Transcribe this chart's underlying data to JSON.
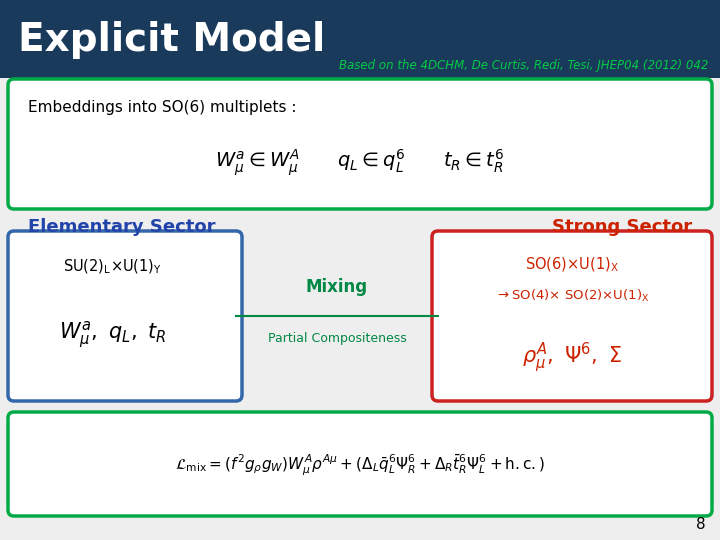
{
  "title": "Explicit Model",
  "subtitle": "Based on the 4DCHM, De Curtis, Redi, Tesi, JHEP04 (2012) 042",
  "header_bg": "#1a3a5c",
  "header_text_color": "#ffffff",
  "subtitle_color": "#00cc44",
  "slide_bg": "#eeeeee",
  "green_border": "#00aa44",
  "blue_border": "#3366aa",
  "red_border": "#cc2222",
  "elementary_color": "#2244aa",
  "strong_color": "#cc2200",
  "mixing_color": "#008844",
  "red_formula_color": "#cc2200",
  "page_number": "8",
  "embeddings_text": "Embeddings into SO(6) multiplets :"
}
